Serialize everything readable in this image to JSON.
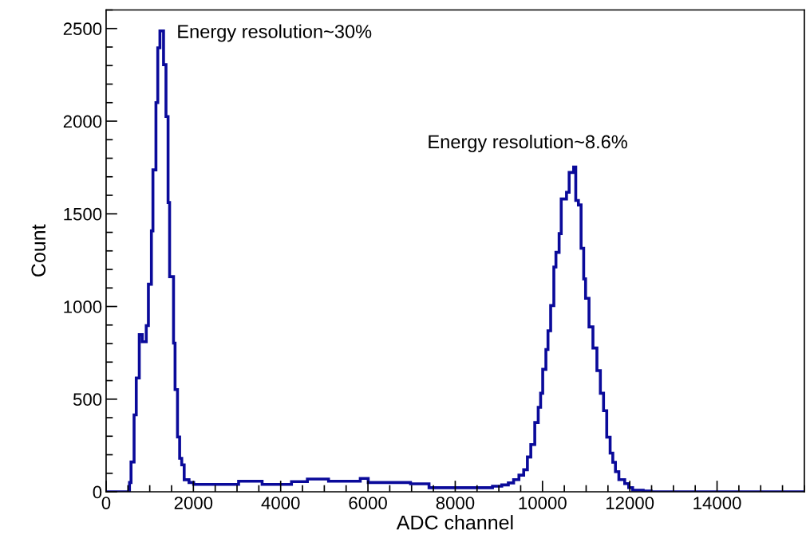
{
  "chart_data": {
    "type": "histogram",
    "xlabel": "ADC channel",
    "ylabel": "Count",
    "bins": [
      0,
      536,
      571,
      641,
      691,
      760,
      829,
      920,
      969,
      1038,
      1073,
      1142,
      1184,
      1233,
      1316,
      1372,
      1420,
      1455,
      1545,
      1580,
      1636,
      1685,
      1733,
      1789,
      1900,
      2006,
      3036,
      3575,
      4248,
      4612,
      5097,
      5824,
      6006,
      6976,
      7400,
      8854,
      9066,
      9217,
      9338,
      9460,
      9569,
      9654,
      9732,
      9823,
      9902,
      9957,
      10005,
      10078,
      10126,
      10187,
      10260,
      10308,
      10381,
      10429,
      10550,
      10611,
      10714,
      10762,
      10823,
      10884,
      10944,
      10987,
      11066,
      11156,
      11247,
      11326,
      11399,
      11472,
      11550,
      11611,
      11672,
      11750,
      11884,
      11975,
      12065,
      12308,
      12490,
      16000
    ],
    "values": [
      0,
      50,
      161,
      415,
      614,
      848,
      810,
      897,
      1120,
      1408,
      1737,
      2100,
      2396,
      2487,
      2305,
      2025,
      1561,
      1161,
      802,
      552,
      296,
      181,
      145,
      65,
      50,
      40,
      57,
      40,
      55,
      69,
      57,
      72,
      50,
      43,
      22,
      30,
      37,
      48,
      66,
      90,
      119,
      188,
      255,
      374,
      456,
      532,
      661,
      768,
      869,
      1005,
      1213,
      1292,
      1393,
      1580,
      1616,
      1723,
      1752,
      1572,
      1548,
      1314,
      1149,
      1044,
      890,
      776,
      654,
      532,
      438,
      295,
      209,
      159,
      109,
      66,
      44,
      23,
      9,
      4,
      0
    ],
    "color": "#0a0a9a",
    "xlim": [
      0,
      16000
    ],
    "xticks": [
      0,
      2000,
      4000,
      6000,
      8000,
      10000,
      12000,
      14000
    ],
    "ylim": [
      0,
      2600
    ],
    "yticks": [
      0,
      500,
      1000,
      1500,
      2000,
      2500
    ],
    "legend": false,
    "annotations": [
      "Energy resolution~30%",
      "Energy resolution~8.6%"
    ]
  }
}
